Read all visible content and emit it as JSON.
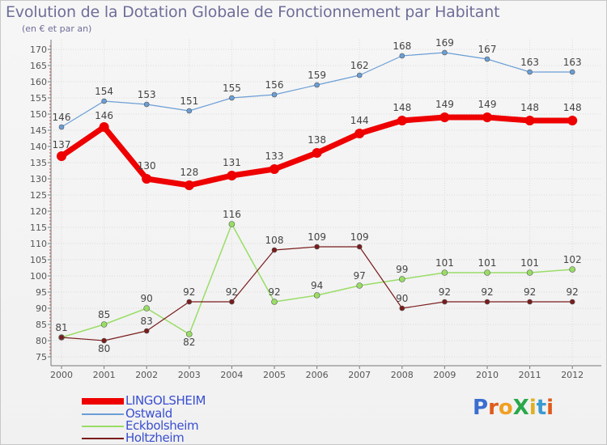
{
  "title": "Evolution de la Dotation Globale de Fonctionnement par Habitant",
  "subtitle": "(en € et par an)",
  "logo_text": "ProXiti",
  "colors": {
    "title": "#6e6e9a",
    "axis": "#777777",
    "grid": "#dadada",
    "legend_text": "#3a4fd0",
    "LINGOLSHEIM": "#ee0000",
    "Ostwald": "#6a9ed6",
    "Eckbolsheim": "#99dd66",
    "Holtzheim": "#7a1c1c"
  },
  "chart_data": {
    "type": "line",
    "title": "Evolution de la Dotation Globale de Fonctionnement par Habitant",
    "subtitle": "(en € et par an)",
    "xlabel": "",
    "ylabel": "",
    "ylim": [
      75,
      172
    ],
    "yticks": [
      75,
      80,
      85,
      90,
      95,
      100,
      105,
      110,
      115,
      120,
      125,
      130,
      135,
      140,
      145,
      150,
      155,
      160,
      165,
      170
    ],
    "x": [
      "2000",
      "2001",
      "2002",
      "2003",
      "2004",
      "2005",
      "2006",
      "2007",
      "2008",
      "2009",
      "2010",
      "2011",
      "2012"
    ],
    "grid": true,
    "legend_position": "bottom-left",
    "series": [
      {
        "name": "LINGOLSHEIM",
        "color": "#ee0000",
        "values": [
          137,
          146,
          130,
          128,
          131,
          133,
          138,
          144,
          148,
          149,
          149,
          148,
          148
        ]
      },
      {
        "name": "Ostwald",
        "color": "#6a9ed6",
        "values": [
          146,
          154,
          153,
          151,
          155,
          156,
          159,
          162,
          168,
          169,
          167,
          163,
          163
        ]
      },
      {
        "name": "Eckbolsheim",
        "color": "#99dd66",
        "values": [
          81,
          85,
          90,
          82,
          116,
          92,
          94,
          97,
          99,
          101,
          101,
          101,
          102
        ]
      },
      {
        "name": "Holtzheim",
        "color": "#7a1c1c",
        "values": [
          81,
          80,
          83,
          92,
          92,
          108,
          109,
          109,
          90,
          92,
          92,
          92,
          92
        ]
      }
    ]
  }
}
